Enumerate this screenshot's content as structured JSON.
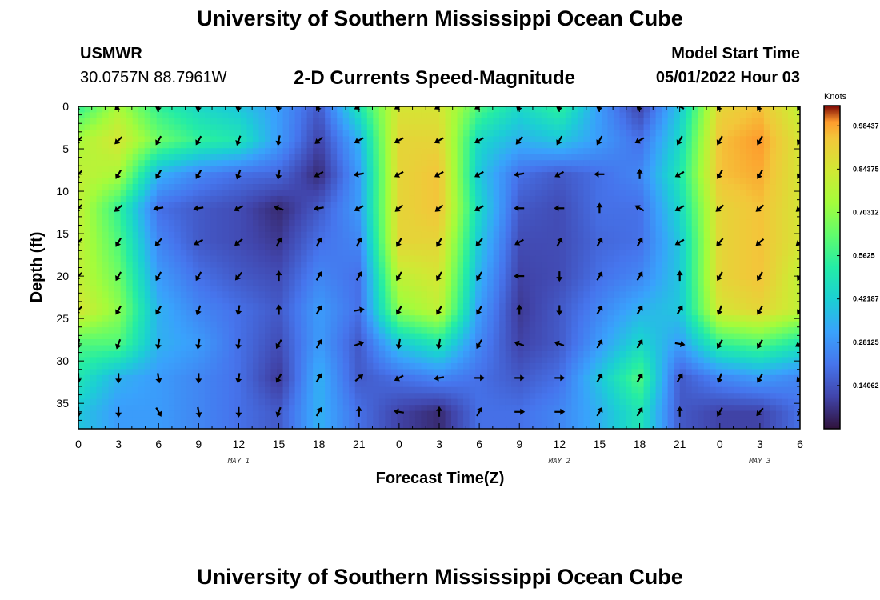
{
  "header": {
    "title": "University of Southern Mississippi Ocean Cube",
    "station": "USMWR",
    "coords": "30.0757N  88.7961W",
    "subtitle": "2-D Currents Speed-Magnitude",
    "start_label": "Model Start Time",
    "start_value": "05/01/2022 Hour 03"
  },
  "footer": {
    "title_repeat": "University of Southern Mississippi Ocean Cube"
  },
  "chart_data": {
    "type": "heatmap",
    "title": "2-D Currents Speed-Magnitude",
    "xlabel": "Forecast Time(Z)",
    "ylabel": "Depth (ft)",
    "x_tick_labels": [
      "0",
      "3",
      "6",
      "9",
      "12",
      "15",
      "18",
      "21",
      "0",
      "3",
      "6",
      "9",
      "12",
      "15",
      "18",
      "21",
      "0",
      "3",
      "6"
    ],
    "x_range_hours": [
      0,
      54
    ],
    "day_labels": [
      {
        "text": "MAY 1",
        "hour": 12
      },
      {
        "text": "MAY 2",
        "hour": 36
      },
      {
        "text": "MAY 3",
        "hour": 51
      }
    ],
    "y_ticks": [
      0,
      5,
      10,
      15,
      20,
      25,
      30,
      35
    ],
    "y_range_ft": [
      0,
      38
    ],
    "colorbar": {
      "units": "Knots",
      "labels": [
        "0.98437",
        "0.84375",
        "0.70312",
        "0.5625",
        "0.42187",
        "0.28125",
        "0.14062"
      ],
      "range": [
        0,
        1.05
      ]
    },
    "speed_sample_hours": [
      0,
      3,
      6,
      9,
      12,
      15,
      18,
      21,
      24,
      27,
      30,
      33,
      36,
      39,
      42,
      45,
      48,
      51,
      54
    ],
    "speed_sample_depths_ft": [
      0,
      4,
      8,
      12,
      16,
      20,
      24,
      28,
      32,
      36
    ],
    "speed_knots": [
      [
        0.55,
        0.75,
        0.55,
        0.45,
        0.4,
        0.3,
        0.15,
        0.5,
        0.85,
        0.85,
        0.6,
        0.45,
        0.55,
        0.3,
        0.1,
        0.4,
        0.9,
        0.95,
        0.8
      ],
      [
        0.75,
        0.85,
        0.65,
        0.55,
        0.5,
        0.3,
        0.1,
        0.35,
        0.9,
        0.9,
        0.45,
        0.35,
        0.4,
        0.3,
        0.2,
        0.45,
        0.95,
        1.0,
        0.85
      ],
      [
        0.8,
        0.75,
        0.35,
        0.25,
        0.2,
        0.18,
        0.05,
        0.3,
        0.9,
        0.95,
        0.4,
        0.2,
        0.15,
        0.2,
        0.25,
        0.5,
        0.95,
        0.98,
        0.85
      ],
      [
        0.8,
        0.55,
        0.2,
        0.15,
        0.12,
        0.05,
        0.15,
        0.3,
        0.9,
        0.95,
        0.45,
        0.15,
        0.12,
        0.2,
        0.2,
        0.45,
        0.9,
        0.95,
        0.85
      ],
      [
        0.8,
        0.6,
        0.25,
        0.15,
        0.12,
        0.08,
        0.2,
        0.25,
        0.9,
        0.9,
        0.4,
        0.12,
        0.12,
        0.18,
        0.2,
        0.4,
        0.9,
        0.95,
        0.85
      ],
      [
        0.8,
        0.65,
        0.3,
        0.2,
        0.15,
        0.12,
        0.25,
        0.2,
        0.8,
        0.85,
        0.35,
        0.1,
        0.12,
        0.2,
        0.25,
        0.4,
        0.9,
        0.95,
        0.8
      ],
      [
        0.85,
        0.7,
        0.35,
        0.25,
        0.2,
        0.15,
        0.3,
        0.2,
        0.7,
        0.8,
        0.3,
        0.08,
        0.15,
        0.25,
        0.35,
        0.4,
        0.85,
        0.9,
        0.8
      ],
      [
        0.6,
        0.6,
        0.35,
        0.3,
        0.2,
        0.12,
        0.3,
        0.15,
        0.4,
        0.5,
        0.25,
        0.1,
        0.15,
        0.3,
        0.45,
        0.3,
        0.55,
        0.6,
        0.5
      ],
      [
        0.5,
        0.35,
        0.3,
        0.25,
        0.2,
        0.08,
        0.35,
        0.15,
        0.2,
        0.25,
        0.2,
        0.15,
        0.2,
        0.4,
        0.6,
        0.15,
        0.25,
        0.3,
        0.25
      ],
      [
        0.4,
        0.3,
        0.3,
        0.25,
        0.2,
        0.15,
        0.35,
        0.2,
        0.1,
        0.05,
        0.2,
        0.2,
        0.25,
        0.35,
        0.5,
        0.15,
        0.1,
        0.1,
        0.2
      ]
    ],
    "arrow_hours": [
      0,
      3,
      6,
      9,
      12,
      15,
      18,
      21,
      24,
      27,
      30,
      33,
      36,
      39,
      42,
      45,
      48,
      51,
      54
    ],
    "arrow_depths_ft": [
      0,
      4,
      8,
      12,
      16,
      20,
      24,
      28,
      32,
      36
    ],
    "arrow_direction_deg": [
      [
        135,
        135,
        100,
        100,
        100,
        100,
        120,
        150,
        150,
        150,
        150,
        110,
        100,
        100,
        110,
        210,
        120,
        120,
        120
      ],
      [
        135,
        135,
        120,
        120,
        110,
        100,
        140,
        150,
        150,
        150,
        150,
        130,
        120,
        120,
        150,
        120,
        120,
        120,
        120
      ],
      [
        135,
        120,
        120,
        120,
        110,
        100,
        150,
        170,
        150,
        150,
        150,
        170,
        150,
        180,
        270,
        150,
        120,
        120,
        120
      ],
      [
        135,
        140,
        170,
        170,
        150,
        200,
        170,
        150,
        140,
        140,
        150,
        180,
        180,
        270,
        210,
        150,
        140,
        140,
        140
      ],
      [
        135,
        120,
        130,
        150,
        140,
        300,
        300,
        300,
        120,
        120,
        130,
        150,
        300,
        300,
        300,
        150,
        130,
        140,
        140
      ],
      [
        135,
        120,
        120,
        120,
        130,
        270,
        300,
        300,
        120,
        120,
        120,
        180,
        90,
        300,
        300,
        270,
        120,
        120,
        120
      ],
      [
        135,
        120,
        120,
        110,
        100,
        270,
        300,
        350,
        120,
        120,
        120,
        270,
        90,
        300,
        300,
        300,
        110,
        120,
        120
      ],
      [
        100,
        110,
        100,
        100,
        100,
        120,
        300,
        340,
        100,
        100,
        120,
        200,
        200,
        300,
        300,
        10,
        120,
        120,
        150
      ],
      [
        90,
        90,
        80,
        90,
        100,
        120,
        300,
        320,
        150,
        170,
        0,
        0,
        0,
        300,
        300,
        300,
        110,
        120,
        130
      ],
      [
        90,
        90,
        60,
        80,
        90,
        110,
        300,
        270,
        190,
        270,
        300,
        0,
        0,
        300,
        300,
        270,
        120,
        130,
        300
      ]
    ]
  }
}
